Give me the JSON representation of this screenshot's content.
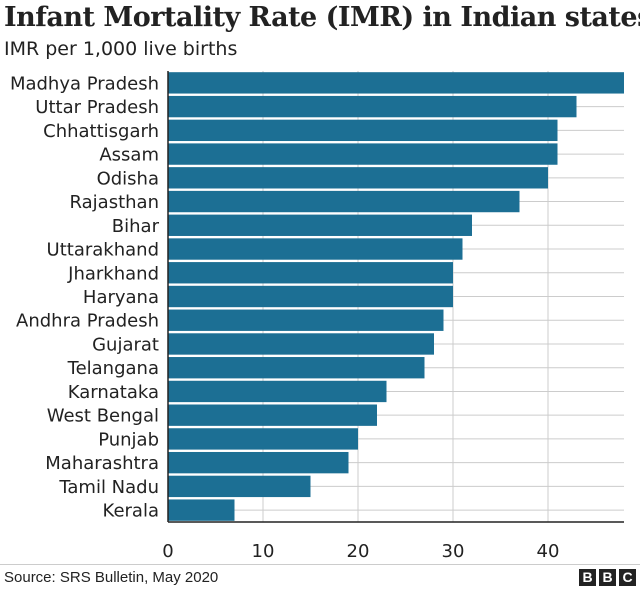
{
  "header": {
    "title": "Infant Mortality Rate (IMR) in Indian states",
    "subtitle": "IMR per 1,000 live births"
  },
  "footer": {
    "source": "Source: SRS Bulletin, May 2020",
    "logo_letters": [
      "B",
      "B",
      "C"
    ]
  },
  "colors": {
    "bar": "#1c6f94",
    "grid": "#cccccc",
    "axis": "#222222"
  },
  "chart_data": {
    "type": "bar",
    "orientation": "horizontal",
    "title": "Infant Mortality Rate (IMR) in Indian states",
    "subtitle": "IMR per 1,000 live births",
    "categories": [
      "Madhya Pradesh",
      "Uttar Pradesh",
      "Chhattisgarh",
      "Assam",
      "Odisha",
      "Rajasthan",
      "Bihar",
      "Uttarakhand",
      "Jharkhand",
      "Haryana",
      "Andhra Pradesh",
      "Gujarat",
      "Telangana",
      "Karnataka",
      "West Bengal",
      "Punjab",
      "Maharashtra",
      "Tamil Nadu",
      "Kerala"
    ],
    "values": [
      48,
      43,
      41,
      41,
      40,
      37,
      32,
      31,
      30,
      30,
      29,
      28,
      27,
      23,
      22,
      20,
      19,
      15,
      7
    ],
    "xlim": [
      0,
      48
    ],
    "xticks": [
      0,
      10,
      20,
      30,
      40
    ],
    "grid": true
  }
}
